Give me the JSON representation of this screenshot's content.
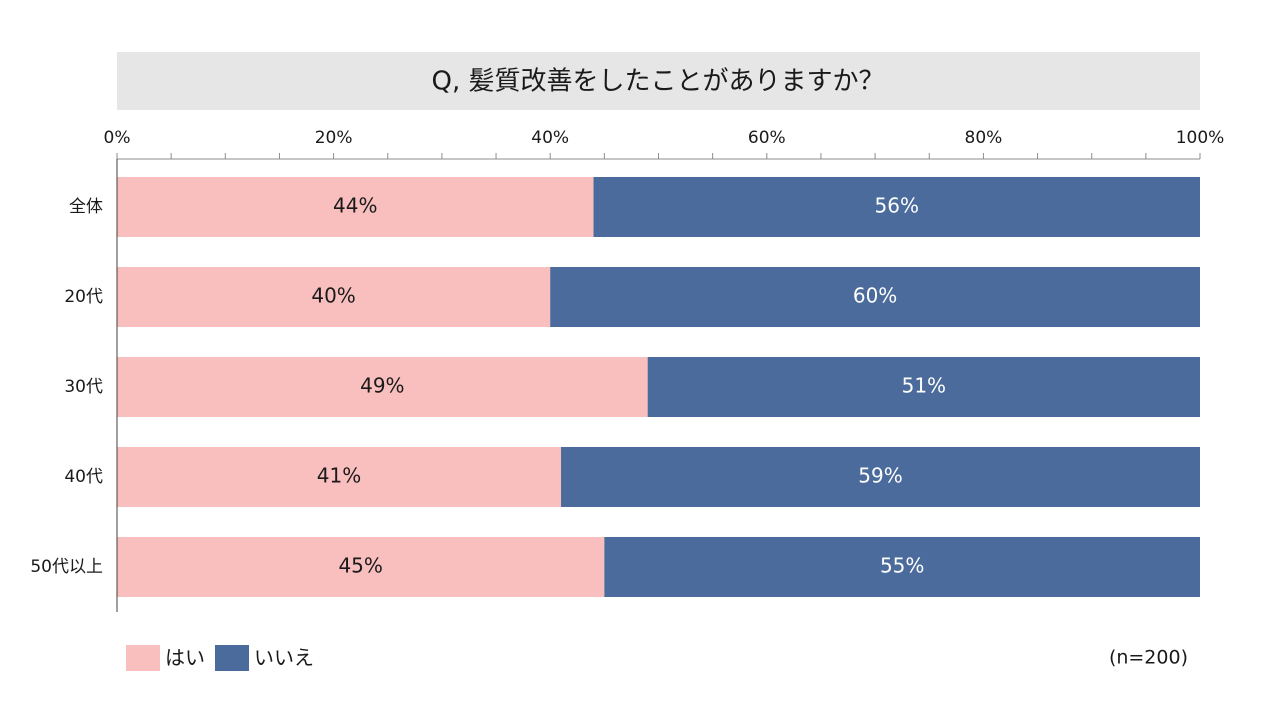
{
  "chart_data": {
    "type": "bar",
    "orientation": "horizontal",
    "stacked": true,
    "title": "Q, 髪質改善をしたことがありますか？",
    "categories": [
      "全体",
      "20代",
      "30代",
      "40代",
      "50代以上"
    ],
    "series": [
      {
        "name": "はい",
        "values": [
          44,
          40,
          49,
          41,
          45
        ],
        "labels": [
          "44%",
          "40%",
          "49%",
          "41%",
          "45%"
        ],
        "color": "#f9bfbf",
        "label_color": "#1a1a1a"
      },
      {
        "name": "いいえ",
        "values": [
          56,
          60,
          51,
          59,
          55
        ],
        "labels": [
          "56%",
          "60%",
          "51%",
          "59%",
          "55%"
        ],
        "color": "#4a6b9b",
        "label_color": "#ffffff"
      }
    ],
    "xlim": [
      0,
      100
    ],
    "xticks": [
      {
        "value": 0,
        "label": "0%"
      },
      {
        "value": 20,
        "label": "20%"
      },
      {
        "value": 40,
        "label": "40%"
      },
      {
        "value": 60,
        "label": "60%"
      },
      {
        "value": 80,
        "label": "80%"
      },
      {
        "value": 100,
        "label": "100%"
      }
    ],
    "minor_tick_step": 5,
    "x_axis_position": "top",
    "grid": false,
    "legend_position": "bottom-left",
    "annotation": "(n=200)"
  }
}
